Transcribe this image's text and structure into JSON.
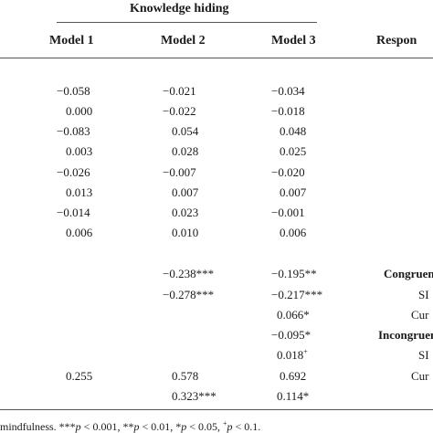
{
  "header": {
    "group_title": "Knowledge hiding",
    "columns": [
      "Model 1",
      "Model 2",
      "Model 3",
      "Respon"
    ]
  },
  "rows": [
    {
      "m1": "−0.058",
      "m2": "−0.021",
      "m3": "−0.034"
    },
    {
      "m1": "0.000",
      "m2": "−0.022",
      "m3": "−0.018"
    },
    {
      "m1": "−0.083",
      "m2": "0.054",
      "m3": "0.048"
    },
    {
      "m1": "0.003",
      "m2": "0.028",
      "m3": "0.025"
    },
    {
      "m1": "−0.026",
      "m2": "−0.007",
      "m3": "−0.020"
    },
    {
      "m1": "0.013",
      "m2": "0.007",
      "m3": "0.007"
    },
    {
      "m1": "−0.014",
      "m2": "0.023",
      "m3": "−0.001"
    },
    {
      "m1": "0.006",
      "m2": "0.010",
      "m3": "0.006"
    }
  ],
  "rows_lower": [
    {
      "m1": "",
      "m2": "−0.238***",
      "m3": "−0.195**",
      "r": "Congruen"
    },
    {
      "m1": "",
      "m2": "−0.278***",
      "m3": "−0.217***",
      "r": "SI"
    },
    {
      "m1": "",
      "m2": "",
      "m3": "0.066*",
      "r": "Cur"
    },
    {
      "m1": "",
      "m2": "",
      "m3": "−0.095*",
      "r": "Incongruen"
    },
    {
      "m1": "",
      "m2": "",
      "m3": "0.018",
      "m3_sup": "+",
      "r": "SI"
    },
    {
      "m1": "0.255",
      "m2": "0.578",
      "m3": "0.692",
      "r": "Cur"
    },
    {
      "m1": "",
      "m2": "0.323***",
      "m3": "0.114*",
      "r": ""
    }
  ],
  "footnote": {
    "lead": "mindfulness. ***",
    "p1": "p",
    "t1": " < 0.001, **",
    "p2": "p",
    "t2": " < 0.01, *",
    "p3": "p",
    "t3": " < 0.05, ",
    "plus": "+",
    "p4": "p",
    "t4": " < 0.1."
  }
}
